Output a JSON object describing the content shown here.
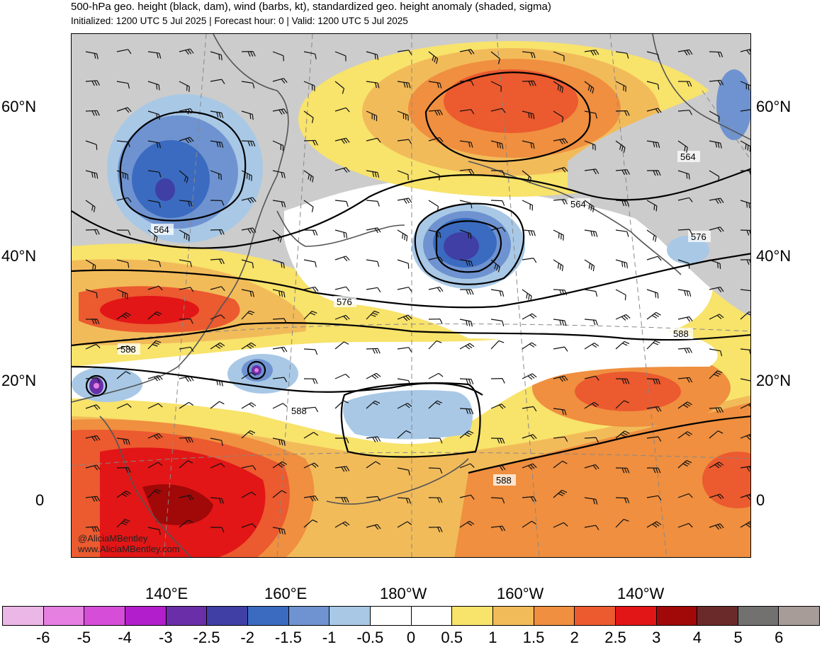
{
  "header": {
    "title": "500-hPa geo. height (black, dam), wind (barbs, kt), standardized geo. height anomaly (shaded, sigma)",
    "subtitle": "Initialized: 1200 UTC 5 Jul 2025 | Forecast hour: 0 | Valid: 1200 UTC 5 Jul 2025"
  },
  "map": {
    "lat_labels_left": [
      "60°N",
      "40°N",
      "20°N",
      "0"
    ],
    "lat_labels_right": [
      "60°N",
      "40°N",
      "20°N",
      "0"
    ],
    "lon_labels": [
      "140°E",
      "160°E",
      "180°W",
      "160°W",
      "140°W"
    ],
    "contour_labels": [
      "564",
      "564",
      "564",
      "576",
      "576",
      "588",
      "588",
      "588",
      "588"
    ],
    "credit_handle": "@AliciaMBentley",
    "credit_url": "www.AliciaMBentley.com",
    "colors": {
      "land_gray": "#cccccc",
      "neutral": "#ffffff",
      "coast": "#555555"
    }
  },
  "colorbar": {
    "ticks": [
      "-6",
      "-5",
      "-4",
      "-3",
      "-2.5",
      "-2",
      "-1.5",
      "-1",
      "-0.5",
      "0",
      "0.5",
      "1",
      "1.5",
      "2",
      "2.5",
      "3",
      "4",
      "5",
      "6"
    ],
    "colors": [
      "#ebb7e6",
      "#e57fe0",
      "#d64dd8",
      "#b21ecc",
      "#6a2ea8",
      "#3f3fa6",
      "#3b6bc0",
      "#6e93d0",
      "#a8c8e6",
      "#ffffff",
      "#ffffff",
      "#f8e36b",
      "#f2bb5a",
      "#ef8f3f",
      "#ec5a2f",
      "#e21616",
      "#a10808",
      "#6b2a2a",
      "#737070",
      "#a89c99"
    ]
  }
}
